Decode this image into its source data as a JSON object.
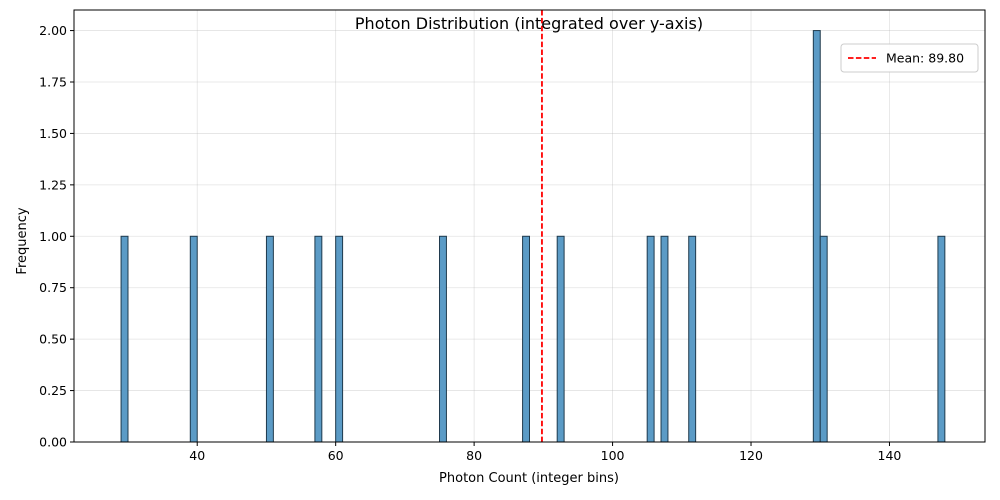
{
  "chart_data": {
    "type": "bar",
    "title": "Photon Distribution (integrated over y-axis)",
    "xlabel": "Photon Count (integer bins)",
    "ylabel": "Frequency",
    "xlim": [
      22.2,
      153.8
    ],
    "ylim": [
      0,
      2.1
    ],
    "xticks": [
      40,
      60,
      80,
      100,
      120,
      140
    ],
    "yticks": [
      0.0,
      0.25,
      0.5,
      0.75,
      1.0,
      1.25,
      1.5,
      1.75,
      2.0
    ],
    "ytick_labels": [
      "0.00",
      "0.25",
      "0.50",
      "0.75",
      "1.00",
      "1.25",
      "1.50",
      "1.75",
      "2.00"
    ],
    "bin_width": 1,
    "bins": [
      {
        "x": 29,
        "count": 1
      },
      {
        "x": 39,
        "count": 1
      },
      {
        "x": 50,
        "count": 1
      },
      {
        "x": 57,
        "count": 1
      },
      {
        "x": 60,
        "count": 1
      },
      {
        "x": 75,
        "count": 1
      },
      {
        "x": 87,
        "count": 1
      },
      {
        "x": 92,
        "count": 1
      },
      {
        "x": 105,
        "count": 1
      },
      {
        "x": 107,
        "count": 1
      },
      {
        "x": 111,
        "count": 1
      },
      {
        "x": 129,
        "count": 2
      },
      {
        "x": 130,
        "count": 1
      },
      {
        "x": 147,
        "count": 1
      }
    ],
    "mean_line": {
      "value": 89.8,
      "label": "Mean: 89.80",
      "color": "#ff0000",
      "style": "dashed"
    },
    "bar_color": "#5b9bc6",
    "bar_edge_color": "#1f3a4d",
    "grid": true,
    "legend_position": "upper right"
  }
}
